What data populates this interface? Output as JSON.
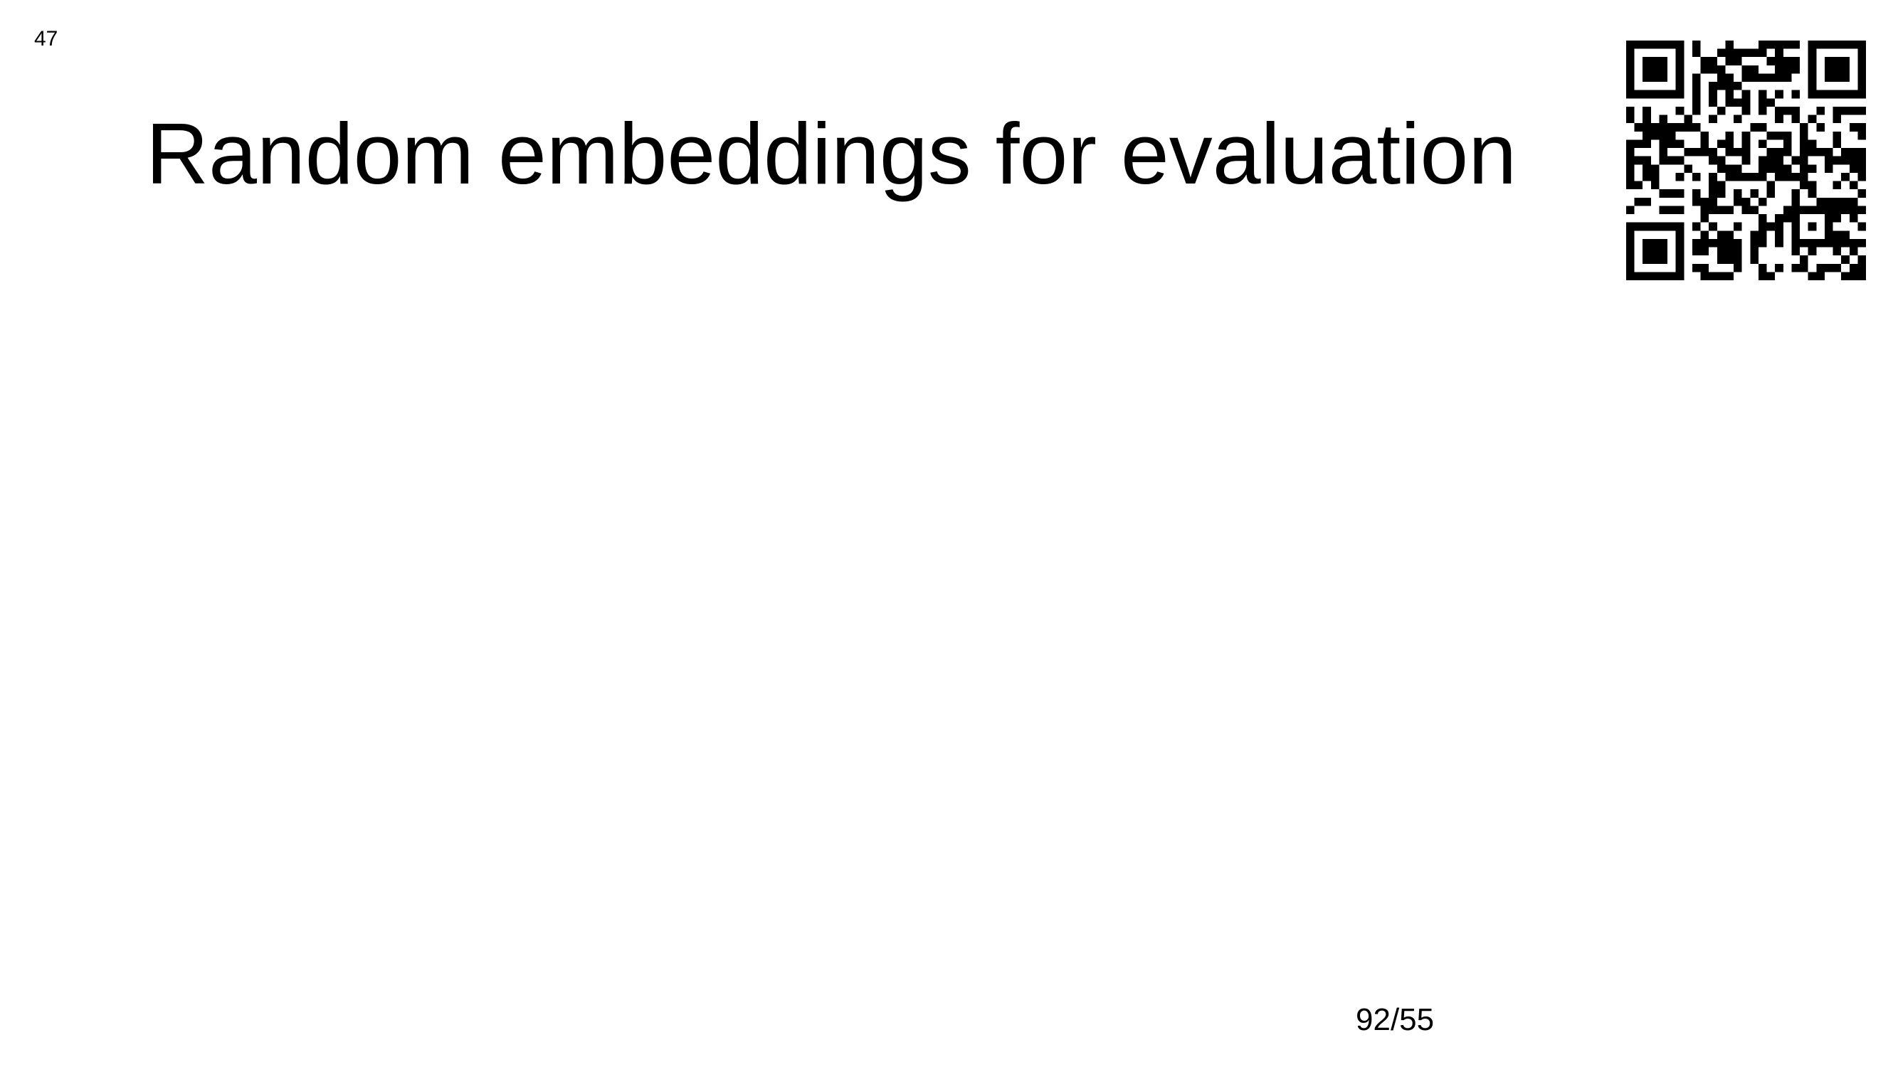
{
  "slide": {
    "corner_number": "47",
    "title": "Random embeddings for evaluation",
    "page_counter": "92/55",
    "qr_code_icon": "qr-code-icon"
  },
  "colors": {
    "background": "#ffffff",
    "text": "#000000"
  }
}
